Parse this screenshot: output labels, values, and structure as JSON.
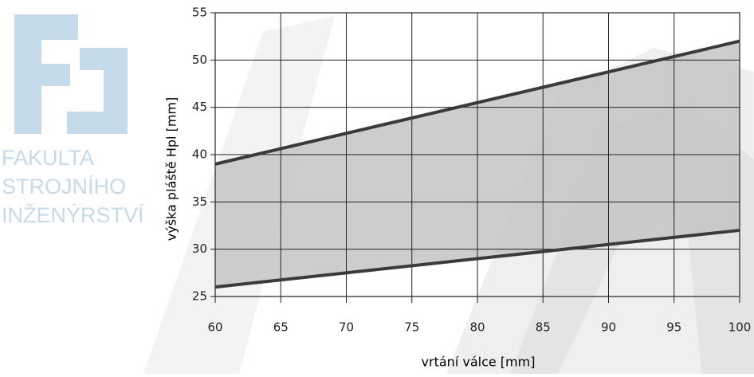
{
  "watermark": [
    "FAKULTA",
    "STROJNÍHO",
    "INŽENÝRSTVÍ"
  ],
  "chart_data": {
    "type": "line",
    "x_label": "vrtání válce [mm]",
    "y_label": "výška pláště Hpl [mm]",
    "x": [
      60,
      100
    ],
    "series": [
      {
        "color": "#3a3a3a",
        "values": [
          39,
          52
        ]
      },
      {
        "color": "#3a3a3a",
        "values": [
          26,
          32
        ]
      }
    ],
    "fill_between": true,
    "fill_color": "#c4c4c4",
    "xlim": [
      60,
      100
    ],
    "xticks": [
      60,
      65,
      70,
      75,
      80,
      85,
      90,
      95,
      100
    ],
    "ylim": [
      25,
      55
    ],
    "yticks": [
      25,
      30,
      35,
      40,
      45,
      50,
      55
    ],
    "grid": true
  }
}
